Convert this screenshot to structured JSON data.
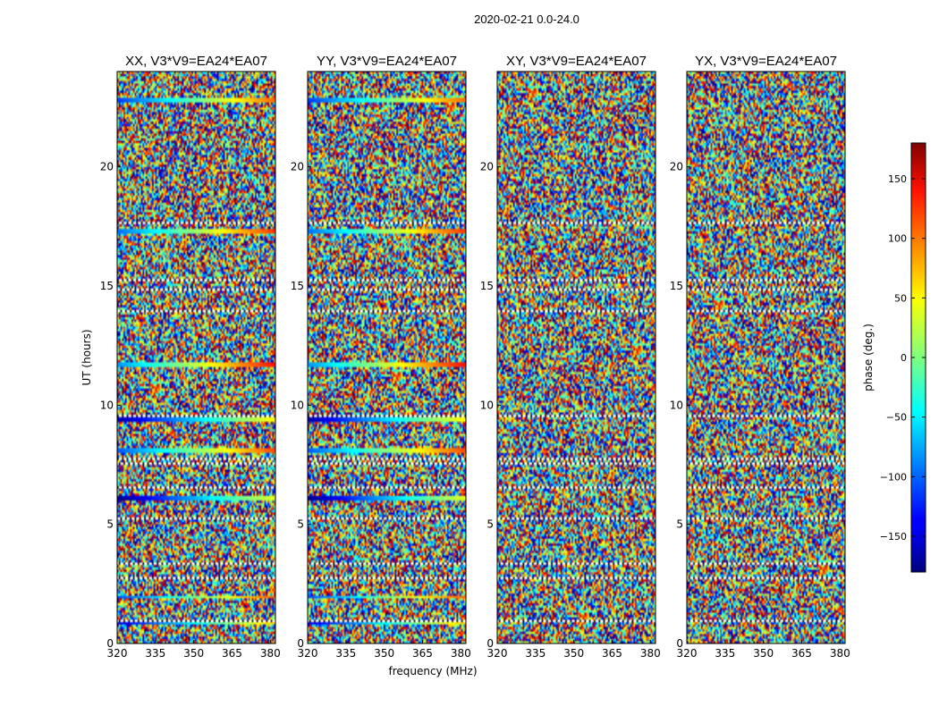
{
  "chart_data": {
    "type": "heatmap",
    "title": "2020-02-21 0.0-24.0",
    "xlabel": "frequency (MHz)",
    "ylabel": "UT (hours)",
    "xlim": [
      320,
      382
    ],
    "ylim": [
      0,
      24
    ],
    "x_ticks": [
      320,
      335,
      350,
      365,
      380
    ],
    "y_ticks": [
      0,
      5,
      10,
      15,
      20
    ],
    "panels": [
      {
        "title": "XX, V3*V9=EA24*EA07",
        "coherent_phase": true
      },
      {
        "title": "YY, V3*V9=EA24*EA07",
        "coherent_phase": true
      },
      {
        "title": "XY, V3*V9=EA24*EA07",
        "coherent_phase": false
      },
      {
        "title": "YX, V3*V9=EA24*EA07",
        "coherent_phase": false
      }
    ],
    "flagged_hours": [
      0.95,
      1.9,
      2.75,
      3.1,
      3.35,
      3.7,
      4.2,
      5.0,
      5.25,
      5.9,
      6.2,
      6.55,
      6.9,
      7.3,
      7.55,
      7.75,
      8.1,
      8.5,
      8.9,
      9.3,
      9.55,
      9.9,
      10.3,
      10.7,
      11.0,
      11.4,
      11.8,
      12.3,
      12.8,
      13.1,
      13.5,
      13.95,
      14.3,
      14.6,
      14.85,
      15.25,
      15.6,
      16.2,
      16.7,
      17.0,
      17.4,
      17.65,
      18.3,
      18.8,
      19.3,
      19.8,
      20.3,
      20.8,
      21.3,
      21.5,
      21.9,
      22.4,
      22.6,
      23.1,
      23.4
    ],
    "colorbar": {
      "label": "phase (deg.)",
      "range": [
        -180,
        180
      ],
      "ticks": [
        150,
        100,
        50,
        0,
        -50,
        -100,
        -150
      ],
      "tick_labels": [
        "150",
        "100",
        "50",
        "0",
        "−50",
        "−100",
        "−150"
      ]
    }
  }
}
